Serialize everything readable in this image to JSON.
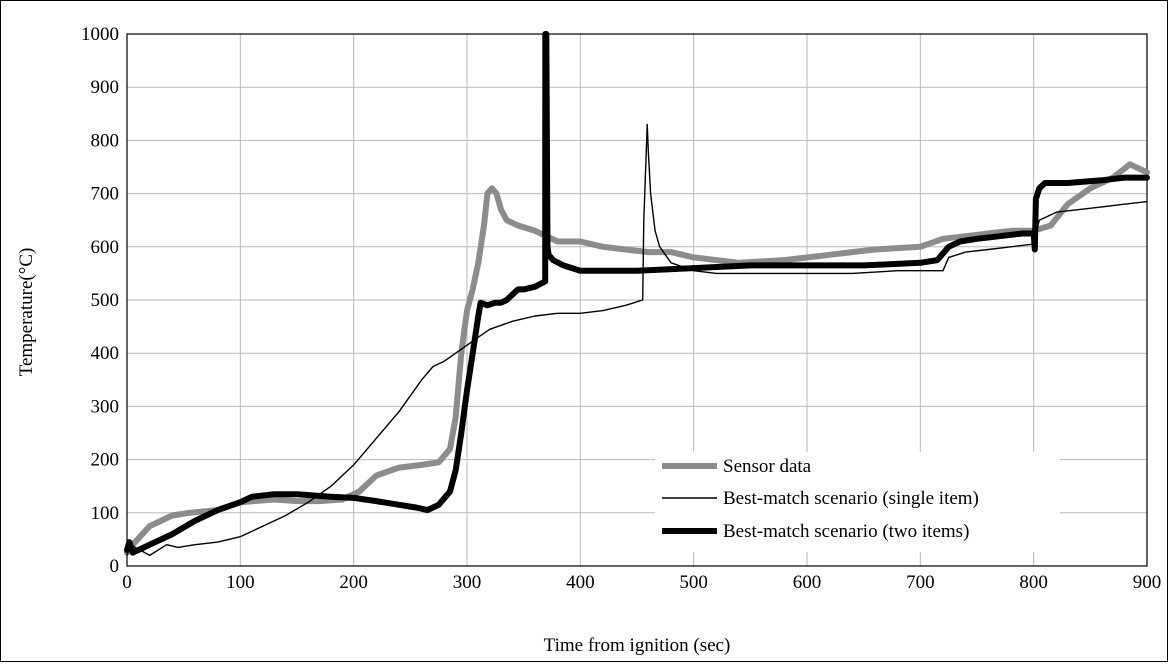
{
  "chart_data": {
    "type": "line",
    "xlabel": "Time from ignition (sec)",
    "ylabel": "Temperature(°C)",
    "xlim": [
      0,
      900
    ],
    "ylim": [
      0,
      1000
    ],
    "x_ticks": [
      0,
      100,
      200,
      300,
      400,
      500,
      600,
      700,
      800,
      900
    ],
    "y_ticks": [
      0,
      100,
      200,
      300,
      400,
      500,
      600,
      700,
      800,
      900,
      1000
    ],
    "grid": true,
    "legend_position": "bottom-right",
    "series": [
      {
        "name": "Sensor data",
        "color": "#8c8c8c",
        "stroke": "thick",
        "x": [
          0,
          5,
          20,
          40,
          55,
          80,
          100,
          130,
          150,
          170,
          190,
          205,
          220,
          240,
          260,
          275,
          285,
          290,
          295,
          300,
          305,
          310,
          315,
          318,
          322,
          326,
          330,
          335,
          345,
          360,
          380,
          400,
          420,
          440,
          460,
          480,
          500,
          540,
          580,
          620,
          640,
          660,
          700,
          720,
          740,
          760,
          780,
          800,
          815,
          830,
          850,
          870,
          885,
          895,
          900
        ],
        "y": [
          25,
          40,
          75,
          95,
          100,
          105,
          120,
          125,
          122,
          122,
          125,
          140,
          170,
          185,
          190,
          195,
          220,
          280,
          400,
          480,
          520,
          570,
          640,
          700,
          710,
          700,
          670,
          650,
          640,
          630,
          610,
          610,
          600,
          595,
          590,
          590,
          580,
          570,
          575,
          585,
          590,
          595,
          600,
          615,
          620,
          625,
          630,
          630,
          640,
          680,
          710,
          730,
          755,
          745,
          740
        ]
      },
      {
        "name": "Best-match scenario (single item)",
        "color": "#000000",
        "stroke": "thin",
        "x": [
          0,
          3,
          20,
          35,
          45,
          60,
          80,
          100,
          120,
          140,
          160,
          180,
          200,
          220,
          240,
          260,
          270,
          280,
          290,
          300,
          310,
          320,
          340,
          360,
          380,
          400,
          420,
          440,
          455,
          456,
          458,
          459,
          460,
          462,
          466,
          470,
          480,
          500,
          520,
          540,
          560,
          600,
          640,
          680,
          700,
          720,
          725,
          740,
          760,
          780,
          800,
          805,
          820,
          840,
          860,
          880,
          900
        ],
        "y": [
          20,
          40,
          20,
          40,
          35,
          40,
          45,
          55,
          75,
          95,
          120,
          150,
          190,
          240,
          290,
          350,
          375,
          385,
          400,
          415,
          430,
          445,
          460,
          470,
          475,
          475,
          480,
          490,
          500,
          650,
          770,
          830,
          780,
          700,
          630,
          600,
          570,
          555,
          550,
          550,
          550,
          550,
          550,
          555,
          555,
          555,
          580,
          590,
          595,
          600,
          605,
          650,
          665,
          670,
          675,
          680,
          685
        ]
      },
      {
        "name": "Best-match scenario (two items)",
        "color": "#000000",
        "stroke": "thick",
        "x": [
          0,
          2,
          5,
          20,
          40,
          60,
          80,
          100,
          110,
          130,
          150,
          180,
          200,
          220,
          240,
          255,
          265,
          275,
          285,
          290,
          295,
          300,
          305,
          310,
          312,
          318,
          325,
          330,
          335,
          340,
          345,
          350,
          360,
          369,
          369.1,
          370,
          371,
          372,
          376,
          385,
          400,
          420,
          450,
          500,
          550,
          600,
          650,
          700,
          715,
          725,
          735,
          750,
          770,
          790,
          800,
          801,
          802,
          805,
          810,
          830,
          860,
          880,
          900
        ],
        "y": [
          30,
          45,
          25,
          40,
          60,
          85,
          105,
          120,
          130,
          135,
          135,
          130,
          128,
          122,
          115,
          110,
          105,
          115,
          140,
          180,
          250,
          330,
          400,
          470,
          495,
          490,
          495,
          495,
          500,
          510,
          520,
          520,
          525,
          535,
          1000,
          1000,
          600,
          585,
          575,
          565,
          555,
          555,
          555,
          560,
          565,
          565,
          565,
          570,
          575,
          600,
          610,
          615,
          620,
          625,
          625,
          595,
          690,
          710,
          720,
          720,
          725,
          730,
          730
        ]
      }
    ]
  }
}
